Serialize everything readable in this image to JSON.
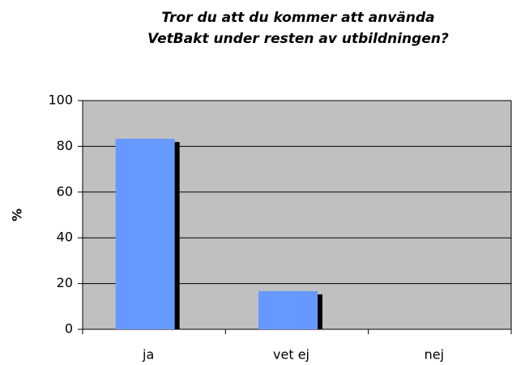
{
  "chart_data": {
    "type": "bar",
    "title": [
      "Tror du att du kommer att använda",
      "VetBakt under resten av utbildningen?"
    ],
    "y_label": "%",
    "categories": [
      "ja",
      "vet ej",
      "nej"
    ],
    "values": [
      83.3,
      16.7,
      0
    ],
    "color": "#6699ff",
    "shadow_color": "#000000",
    "plot_background": "#c0c0c0",
    "ylim": [
      0,
      100
    ],
    "yticks": [
      0,
      20,
      40,
      60,
      80,
      100
    ],
    "grid": true
  }
}
